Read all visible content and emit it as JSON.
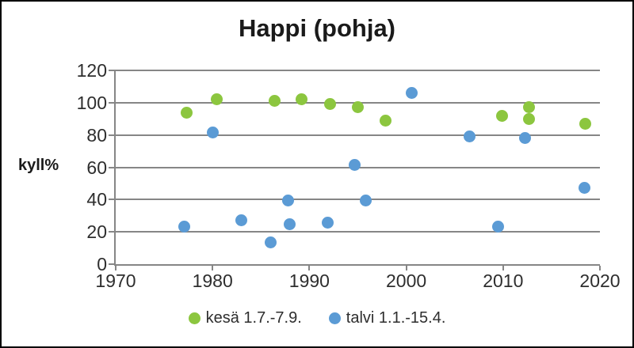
{
  "figure": {
    "border_color": "#000000",
    "background_color": "#ffffff"
  },
  "colors": {
    "summer_green": "#8cc63f",
    "winter_blue": "#5b9bd5",
    "gridline_gray": "#868686",
    "tick_text": "#2e2e2e",
    "title_text": "#1a1a1a"
  },
  "chart_data": {
    "type": "scatter",
    "title": "Happi (pohja)",
    "xlabel": "",
    "ylabel": "kyll%",
    "xlim": [
      1970,
      2020
    ],
    "ylim": [
      0,
      120
    ],
    "x_ticks": [
      1970,
      1980,
      1990,
      2000,
      2010,
      2020
    ],
    "y_ticks": [
      0,
      20,
      40,
      60,
      80,
      100,
      120
    ],
    "grid": true,
    "legend_position": "bottom",
    "series": [
      {
        "name": "kesä 1.7.-7.9.",
        "color": "#8cc63f",
        "points": [
          [
            1977.3,
            94
          ],
          [
            1980.4,
            102
          ],
          [
            1986.4,
            101
          ],
          [
            1989.2,
            102
          ],
          [
            1992.1,
            99
          ],
          [
            1995.0,
            97
          ],
          [
            1997.9,
            89
          ],
          [
            2009.9,
            92
          ],
          [
            2012.7,
            97
          ],
          [
            2012.7,
            90
          ],
          [
            2018.5,
            87
          ]
        ]
      },
      {
        "name": "talvi 1.1.-15.4.",
        "color": "#5b9bd5",
        "points": [
          [
            1977.1,
            23.5
          ],
          [
            1980.0,
            81.5
          ],
          [
            1983.0,
            27
          ],
          [
            1986.0,
            13.5
          ],
          [
            1987.8,
            39.5
          ],
          [
            1988.0,
            24.5
          ],
          [
            1991.9,
            25.5
          ],
          [
            1994.7,
            61.5
          ],
          [
            1995.8,
            39.5
          ],
          [
            2000.6,
            106
          ],
          [
            2006.5,
            79
          ],
          [
            2009.5,
            23.5
          ],
          [
            2012.3,
            78
          ],
          [
            2018.4,
            47.5
          ]
        ]
      }
    ]
  }
}
